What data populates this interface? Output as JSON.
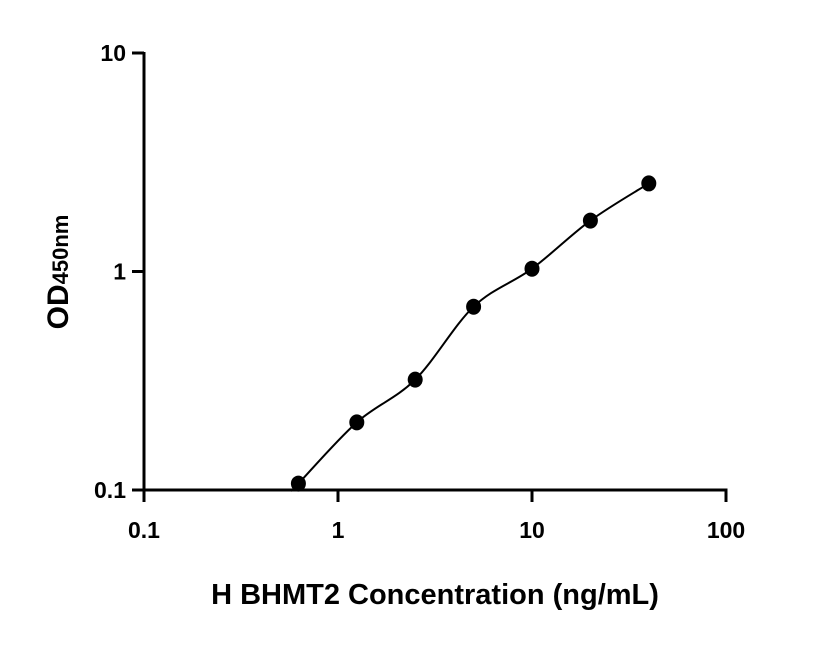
{
  "chart_data": {
    "type": "scatter",
    "xlabel": "H BHMT2 Concentration (ng/mL)",
    "ylabel_main": "OD",
    "ylabel_sub": "450nm",
    "x_scale": "log",
    "y_scale": "log",
    "xlim": [
      0.1,
      100
    ],
    "ylim": [
      0.1,
      10
    ],
    "x_ticks": [
      "0.1",
      "1",
      "10",
      "100"
    ],
    "y_ticks": [
      "0.1",
      "1",
      "10"
    ],
    "grid": false,
    "fit_curve": true,
    "points": [
      {
        "x": 0.625,
        "y": 0.107
      },
      {
        "x": 1.25,
        "y": 0.204
      },
      {
        "x": 2.5,
        "y": 0.32
      },
      {
        "x": 5,
        "y": 0.69
      },
      {
        "x": 10,
        "y": 1.03
      },
      {
        "x": 20,
        "y": 1.71
      },
      {
        "x": 40,
        "y": 2.53
      }
    ],
    "colors": {
      "marker": "#000000",
      "axis": "#000000"
    }
  }
}
